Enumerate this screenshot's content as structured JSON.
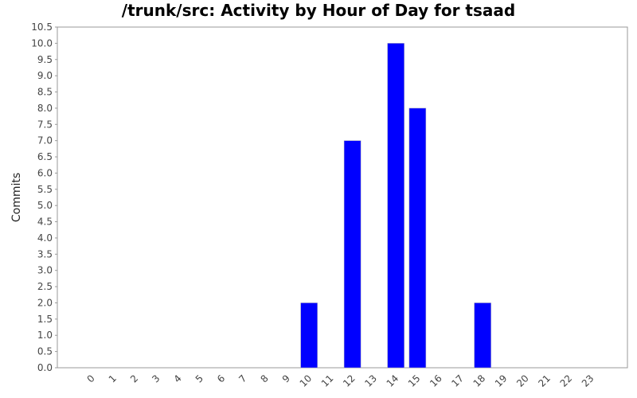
{
  "chart_data": {
    "type": "bar",
    "title": "/trunk/src: Activity by Hour of Day for tsaad",
    "ylabel": "Commits",
    "categories": [
      "0",
      "1",
      "2",
      "3",
      "4",
      "5",
      "6",
      "7",
      "8",
      "9",
      "10",
      "11",
      "12",
      "13",
      "14",
      "15",
      "16",
      "17",
      "18",
      "19",
      "20",
      "21",
      "22",
      "23"
    ],
    "values": [
      0,
      0,
      0,
      0,
      0,
      0,
      0,
      0,
      0,
      0,
      2,
      0,
      7,
      0,
      10,
      8,
      0,
      0,
      2,
      0,
      0,
      0,
      0,
      0
    ],
    "color": "#0000ff",
    "ylim": [
      0,
      10.5
    ],
    "yticks": [
      {
        "value": 0,
        "label": "0.0"
      },
      0.5,
      {
        "value": 1,
        "label": "1.0"
      },
      1.5,
      {
        "value": 2,
        "label": "2.0"
      },
      2.5,
      {
        "value": 3,
        "label": "3.0"
      },
      3.5,
      {
        "value": 4,
        "label": "4.0"
      },
      4.5,
      {
        "value": 5,
        "label": "5.0"
      },
      5.5,
      {
        "value": 6,
        "label": "6.0"
      },
      6.5,
      {
        "value": 7,
        "label": "7.0"
      },
      7.5,
      {
        "value": 8,
        "label": "8.0"
      },
      8.5,
      {
        "value": 9,
        "label": "9.0"
      },
      9.5,
      {
        "value": 10,
        "label": "10.0"
      },
      10.5
    ],
    "grid": false
  }
}
